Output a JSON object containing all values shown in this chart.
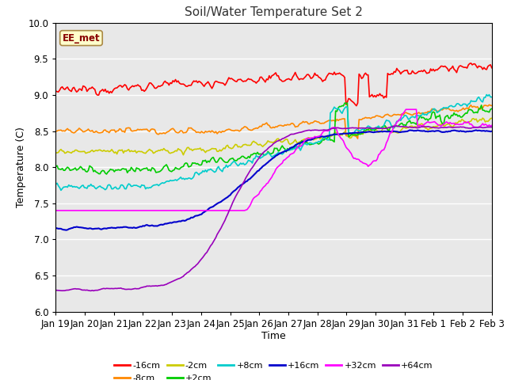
{
  "title": "Soil/Water Temperature Set 2",
  "xlabel": "Time",
  "ylabel": "Temperature (C)",
  "ylim": [
    6.0,
    10.0
  ],
  "annotation": "EE_met",
  "fig_bg": "#ffffff",
  "axes_bg": "#e8e8e8",
  "series": {
    "-16cm": {
      "color": "#ff0000",
      "lw": 1.2
    },
    "-8cm": {
      "color": "#ff8800",
      "lw": 1.2
    },
    "-2cm": {
      "color": "#cccc00",
      "lw": 1.2
    },
    "+2cm": {
      "color": "#00cc00",
      "lw": 1.2
    },
    "+8cm": {
      "color": "#00cccc",
      "lw": 1.2
    },
    "+16cm": {
      "color": "#0000cc",
      "lw": 1.5
    },
    "+32cm": {
      "color": "#ff00ff",
      "lw": 1.2
    },
    "+64cm": {
      "color": "#9900bb",
      "lw": 1.2
    }
  },
  "xtick_labels": [
    "Jan 19",
    "Jan 20",
    "Jan 21",
    "Jan 22",
    "Jan 23",
    "Jan 24",
    "Jan 25",
    "Jan 26",
    "Jan 27",
    "Jan 28",
    "Jan 29",
    "Jan 30",
    "Jan 31",
    "Feb 1",
    "Feb 2",
    "Feb 3"
  ],
  "n_points": 336,
  "legend_row1": [
    "-16cm",
    "-8cm",
    "-2cm",
    "+2cm",
    "+8cm",
    "+16cm"
  ],
  "legend_row2": [
    "+32cm",
    "+64cm"
  ]
}
